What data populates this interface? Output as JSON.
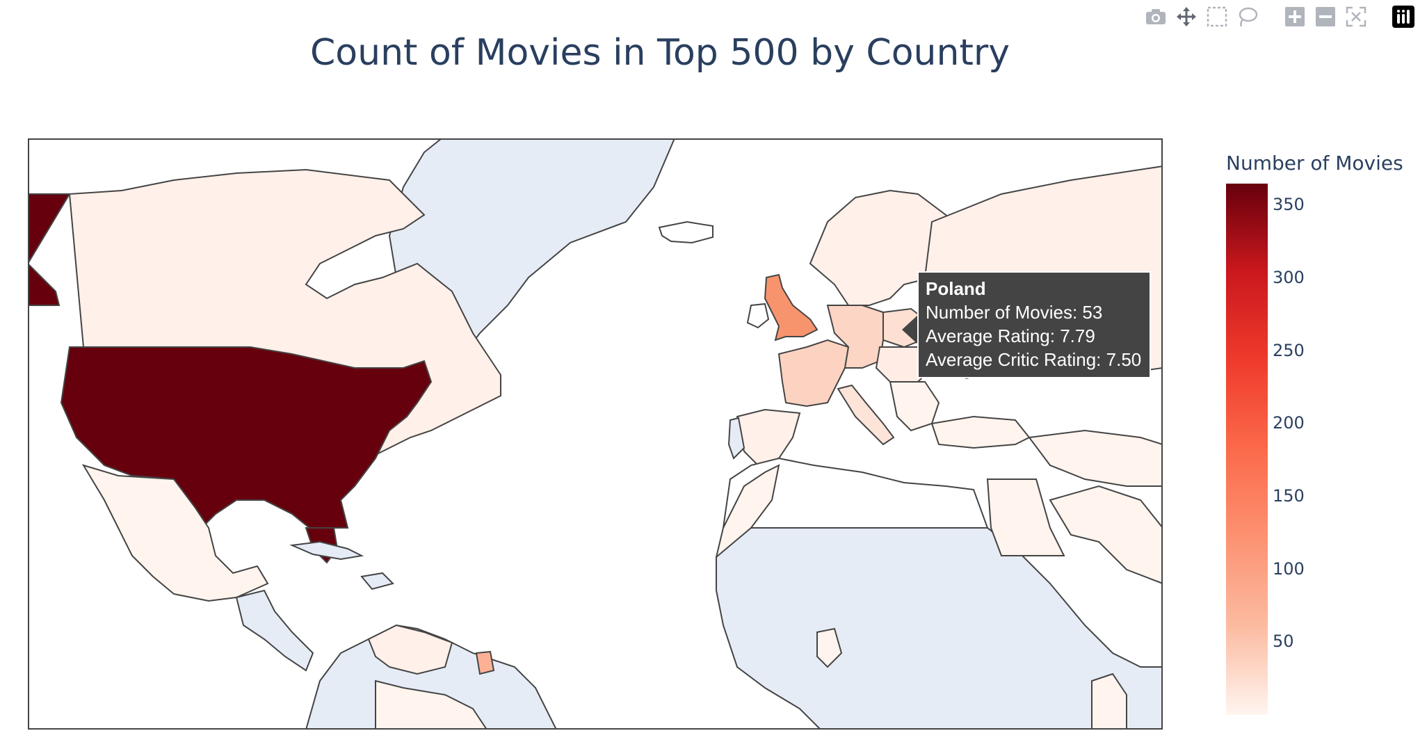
{
  "title": "Count of Movies in Top 500 by Country",
  "modebar": {
    "buttons": [
      "camera-icon",
      "pan-icon",
      "box-select-icon",
      "lasso-select-icon",
      "zoom-in-icon",
      "zoom-out-icon",
      "reset-view-icon",
      "plotly-logo-icon"
    ]
  },
  "colorbar": {
    "title": "Number of Movies",
    "ticks": [
      "350",
      "300",
      "250",
      "200",
      "150",
      "100",
      "50"
    ],
    "min": 0,
    "max": 365,
    "colorscale": [
      "#fff5f0",
      "#fcbba1",
      "#fc9272",
      "#fb6a4a",
      "#ef3b2c",
      "#cb181d",
      "#67000d"
    ]
  },
  "colors": {
    "no_data": "#e5ecf6",
    "ocean": "#ffffff",
    "border": "#444444",
    "land_default": "#ffffff"
  },
  "tooltip": {
    "country": "Poland",
    "line1": "Number of Movies: 53",
    "line2": "Average Rating: 7.79",
    "line3": "Average Critic Rating: 7.50"
  },
  "chart_data": {
    "type": "choropleth",
    "title": "Count of Movies in Top 500 by Country",
    "colorbar_title": "Number of Movies",
    "colorbar_range": [
      0,
      365
    ],
    "regions": [
      {
        "name": "United States",
        "value": 365
      },
      {
        "name": "United Kingdom",
        "value": 110
      },
      {
        "name": "France",
        "value": 40
      },
      {
        "name": "Germany",
        "value": 38
      },
      {
        "name": "Poland",
        "value": 53,
        "avg_rating": 7.79,
        "avg_critic_rating": 7.5
      },
      {
        "name": "Suriname",
        "value": 75
      },
      {
        "name": "Canada",
        "value": 12
      },
      {
        "name": "Mexico",
        "value": 8
      }
    ]
  }
}
